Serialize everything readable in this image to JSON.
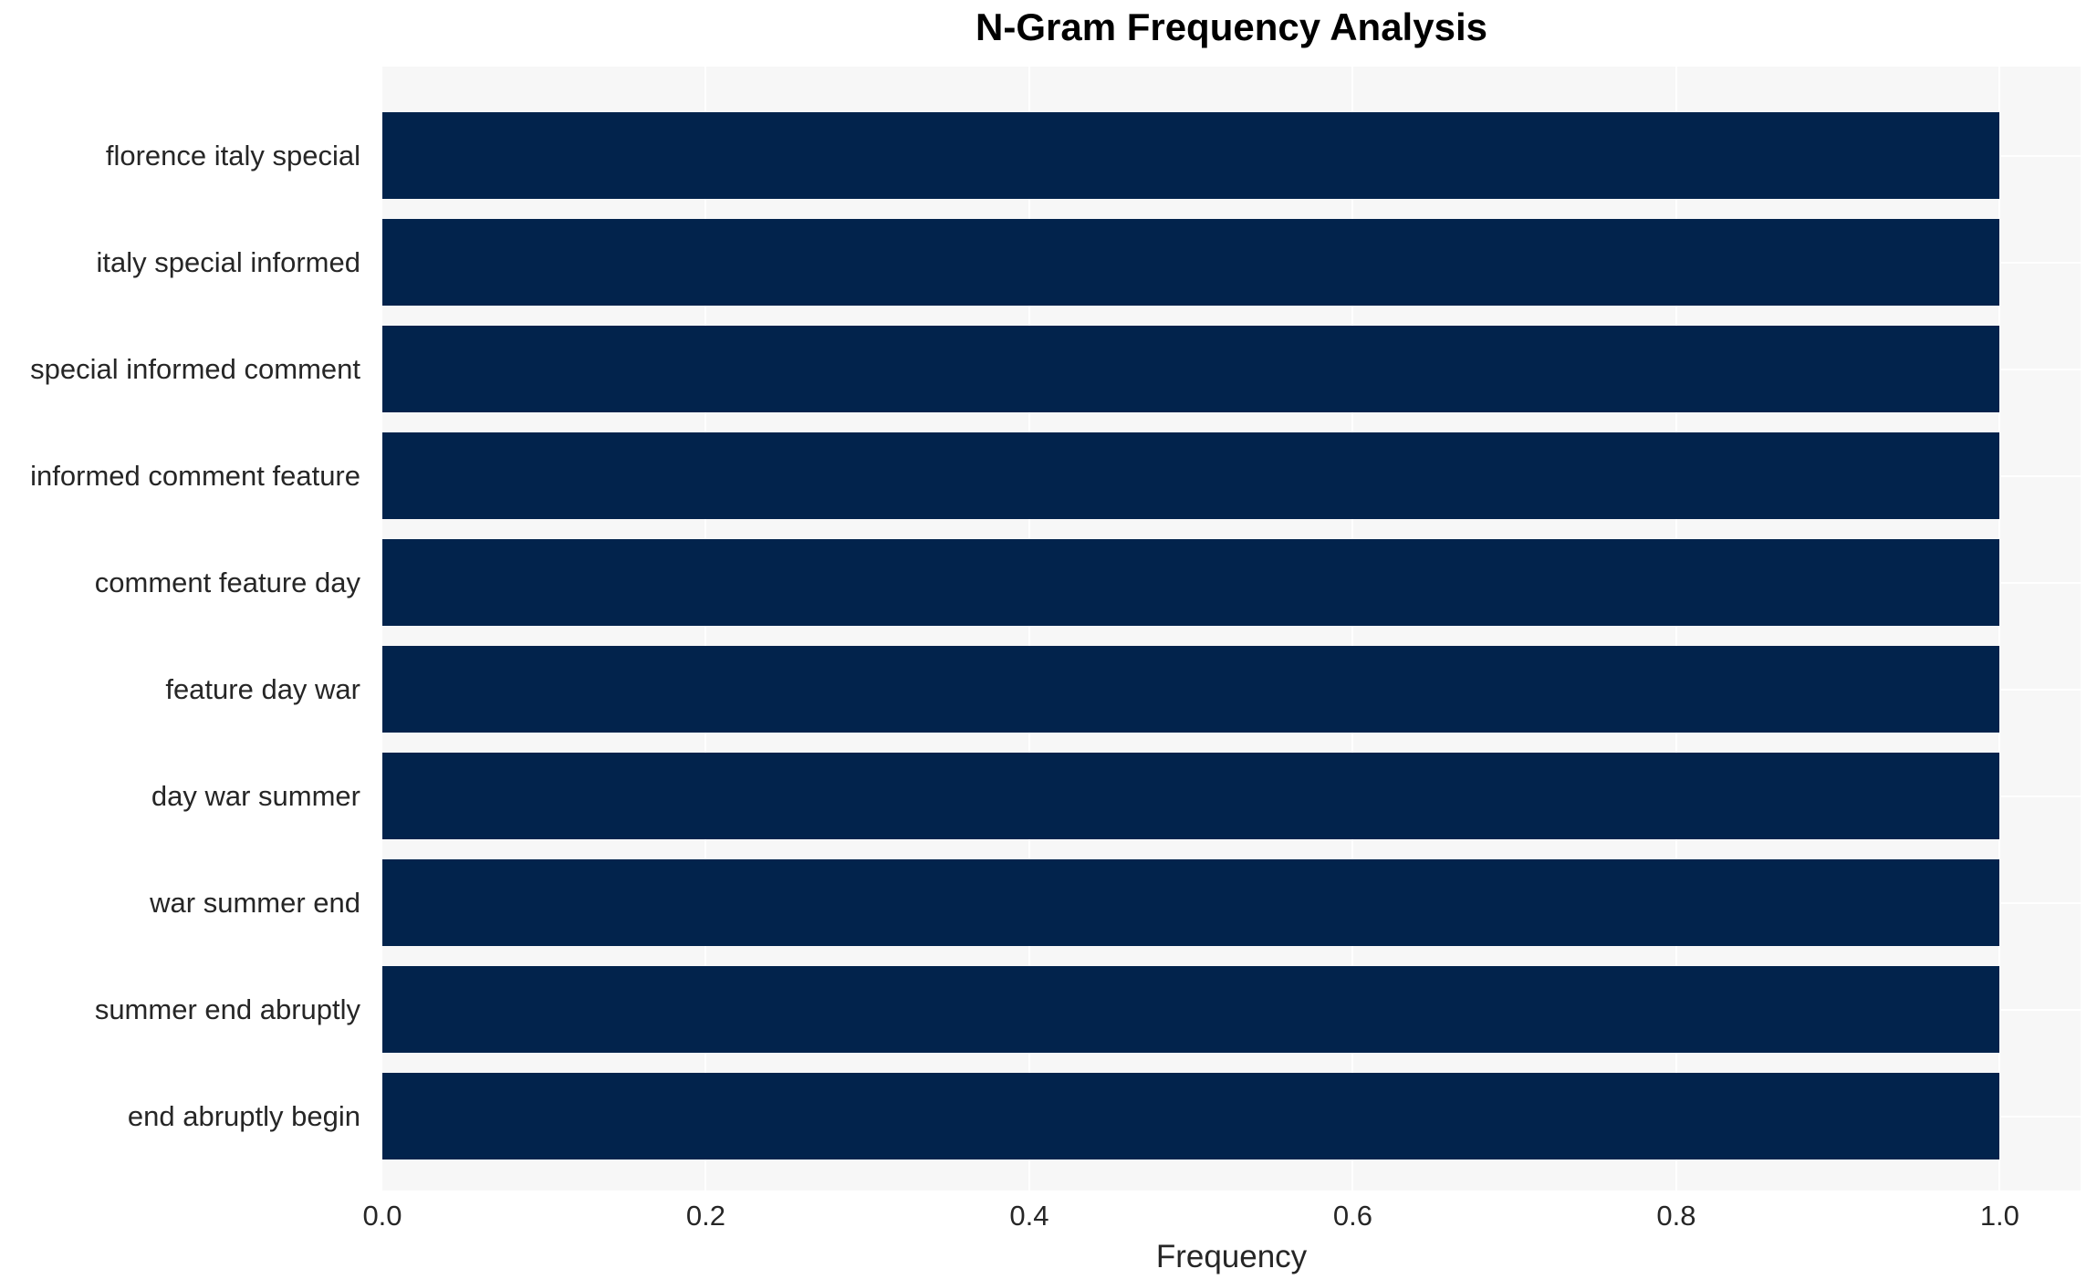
{
  "chart_data": {
    "type": "bar",
    "orientation": "horizontal",
    "title": "N-Gram Frequency Analysis",
    "xlabel": "Frequency",
    "ylabel": "",
    "categories": [
      "florence italy special",
      "italy special informed",
      "special informed comment",
      "informed comment feature",
      "comment feature day",
      "feature day war",
      "day war summer",
      "war summer end",
      "summer end abruptly",
      "end abruptly begin"
    ],
    "values": [
      1.0,
      1.0,
      1.0,
      1.0,
      1.0,
      1.0,
      1.0,
      1.0,
      1.0,
      1.0
    ],
    "xlim": [
      0,
      1.05
    ],
    "xticks": [
      0.0,
      0.2,
      0.4,
      0.6,
      0.8,
      1.0
    ],
    "xtick_labels": [
      "0.0",
      "0.2",
      "0.4",
      "0.6",
      "0.8",
      "1.0"
    ],
    "grid": true,
    "legend": false,
    "colors": {
      "bar": "#02234c",
      "plot_bg": "#f7f7f7",
      "grid": "#ffffff",
      "figure_bg": "#ffffff",
      "tick_text": "#262626",
      "title_text": "#000000"
    }
  }
}
